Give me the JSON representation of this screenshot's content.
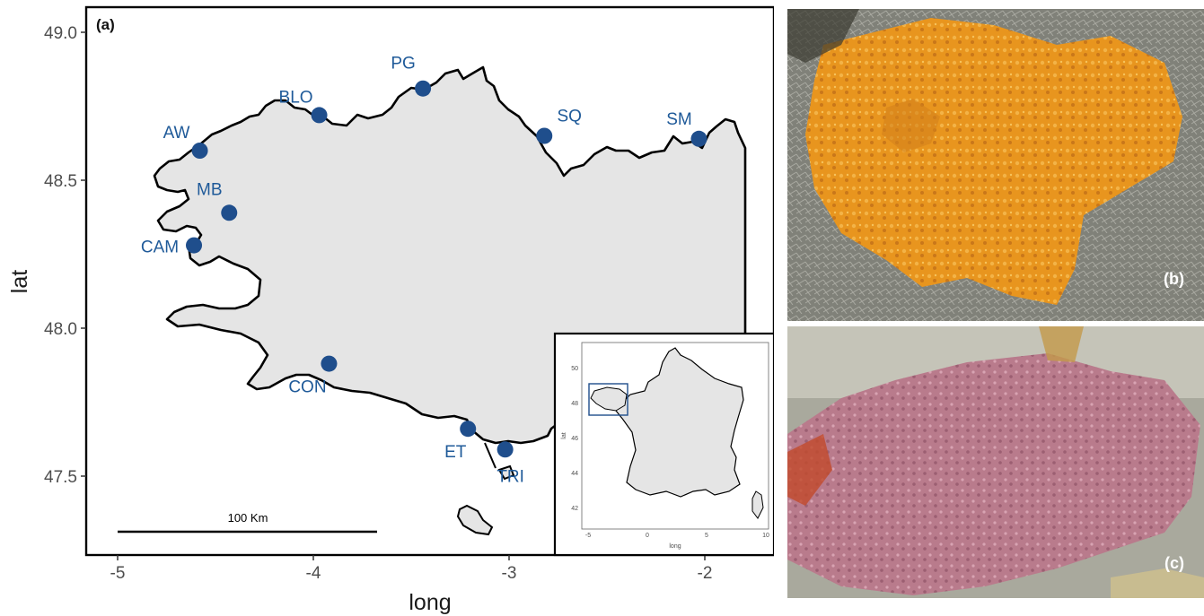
{
  "panel_a": {
    "tag": "(a)",
    "xlabel": "long",
    "ylabel": "lat",
    "x_ticks": [
      "-5",
      "-4",
      "-3",
      "-2"
    ],
    "y_ticks": [
      "49.0",
      "48.5",
      "48.0",
      "47.5"
    ],
    "scale_bar_label": "100 Km",
    "sites": [
      {
        "code": "AW",
        "lon": -4.58,
        "lat": 48.6
      },
      {
        "code": "BLO",
        "lon": -3.97,
        "lat": 48.72
      },
      {
        "code": "PG",
        "lon": -3.44,
        "lat": 48.81
      },
      {
        "code": "SQ",
        "lon": -2.82,
        "lat": 48.65
      },
      {
        "code": "SM",
        "lon": -2.03,
        "lat": 48.64
      },
      {
        "code": "MB",
        "lon": -4.43,
        "lat": 48.39
      },
      {
        "code": "CAM",
        "lon": -4.61,
        "lat": 48.28
      },
      {
        "code": "CON",
        "lon": -3.92,
        "lat": 47.88
      },
      {
        "code": "ET",
        "lon": -3.21,
        "lat": 47.66
      },
      {
        "code": "TRI",
        "lon": -3.02,
        "lat": 47.59
      }
    ],
    "colors": {
      "point": "#1f4e8c",
      "land": "#e5e5e5",
      "coast": "#000000"
    }
  },
  "inset": {
    "xlabel": "long",
    "ylabel": "lat",
    "x_ticks": [
      "-5",
      "0",
      "5",
      "10"
    ],
    "y_ticks": [
      "50",
      "48",
      "46",
      "44",
      "42"
    ]
  },
  "panel_b": {
    "tag": "(b)"
  },
  "panel_c": {
    "tag": "(c)"
  }
}
